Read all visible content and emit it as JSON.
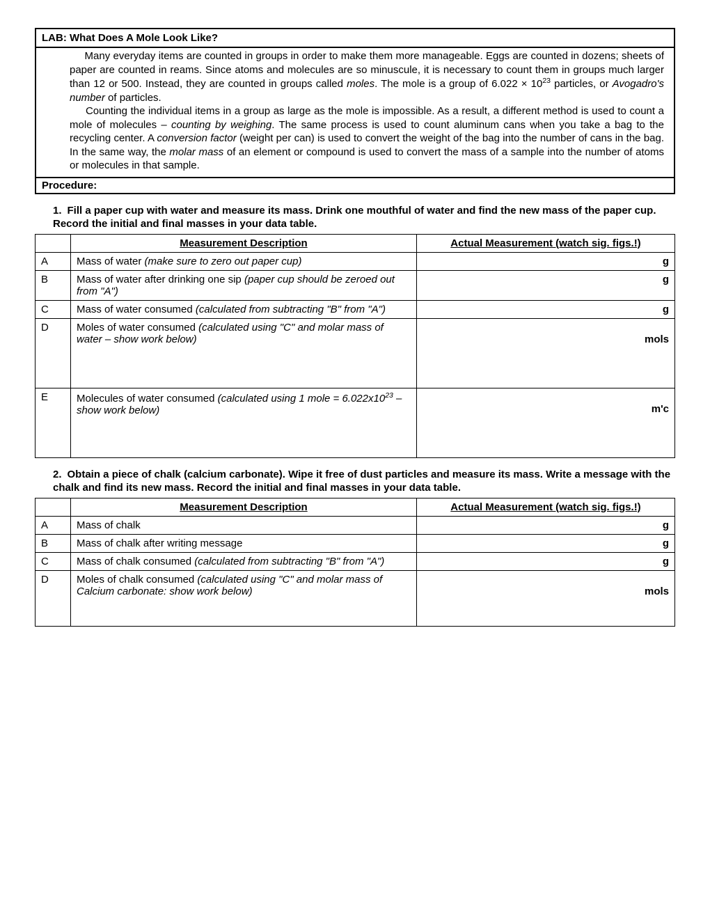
{
  "title": "LAB: What Does A Mole Look Like?",
  "intro": {
    "p1a": "Many everyday items are counted in groups in order to make them more manageable. Eggs are counted in dozens; sheets of paper are counted in reams. Since atoms and molecules are so minuscule, it is necessary to count them in groups much larger than 12 or 500. Instead, they are counted in groups called ",
    "p1_moles": "moles",
    "p1b": ". The mole is a group of 6.022 × 10",
    "p1_exp": "23",
    "p1c": " particles, or ",
    "p1_avo": "Avogadro's number",
    "p1d": " of particles.",
    "p2a": "Counting the individual items in a group as large as the mole is impossible. As a result, a different method is used to count a mole of molecules – ",
    "p2_cbw": "counting by weighing",
    "p2b": ". The same process is used to count aluminum cans when you take a bag to the recycling center. A ",
    "p2_cf": "conversion factor",
    "p2c": " (weight per can) is used to convert the weight of the bag into the number of cans in the bag. In the same way, the ",
    "p2_mm": "molar mass",
    "p2d": " of an element or compound is used to convert the mass of a sample into the number of atoms or molecules in that sample."
  },
  "procedure_label": "Procedure:",
  "step1": {
    "num": "1.",
    "text": "Fill a paper cup with water and measure its mass.  Drink one mouthful of water and find the new mass of the paper cup.  Record the initial and final masses in your data table."
  },
  "step2": {
    "num": "2.",
    "text": "Obtain a piece of chalk (calcium carbonate).  Wipe it free of dust particles and measure its mass.  Write a message with the chalk and find its new mass.  Record the initial and final masses in your data table."
  },
  "headers": {
    "desc": "Measurement Description",
    "meas": "Actual Measurement (watch sig. figs.!)"
  },
  "table1": {
    "A": {
      "l": "A",
      "d1": "Mass of water ",
      "d2": "(make sure to zero out paper cup)",
      "u": "g"
    },
    "B": {
      "l": "B",
      "d1": "Mass of water after drinking one sip ",
      "d2": "(paper cup should be zeroed out from \"A\")",
      "u": "g"
    },
    "C": {
      "l": "C",
      "d1": "Mass of water consumed ",
      "d2": "(calculated from subtracting \"B\" from \"A\")",
      "u": "g"
    },
    "D": {
      "l": "D",
      "d1": "Moles of water consumed ",
      "d2": "(calculated using \"C\" and molar mass of water – show work below)",
      "u": "mols"
    },
    "E": {
      "l": "E",
      "d1": "Molecules of water consumed ",
      "d2a": "(calculated using 1 mole = 6.022x10",
      "d2exp": "23",
      "d2b": " – show work below)",
      "u": "m'c"
    }
  },
  "table2": {
    "A": {
      "l": "A",
      "d1": "Mass of chalk",
      "d2": "",
      "u": "g"
    },
    "B": {
      "l": "B",
      "d1": "Mass of chalk after writing message",
      "d2": "",
      "u": "g"
    },
    "C": {
      "l": "C",
      "d1": "Mass of chalk consumed ",
      "d2": "(calculated from subtracting \"B\" from \"A\")",
      "u": "g"
    },
    "D": {
      "l": "D",
      "d1": "Moles of chalk consumed ",
      "d2": "(calculated using \"C\" and molar mass of Calcium carbonate: show work below)",
      "u": "mols"
    }
  }
}
